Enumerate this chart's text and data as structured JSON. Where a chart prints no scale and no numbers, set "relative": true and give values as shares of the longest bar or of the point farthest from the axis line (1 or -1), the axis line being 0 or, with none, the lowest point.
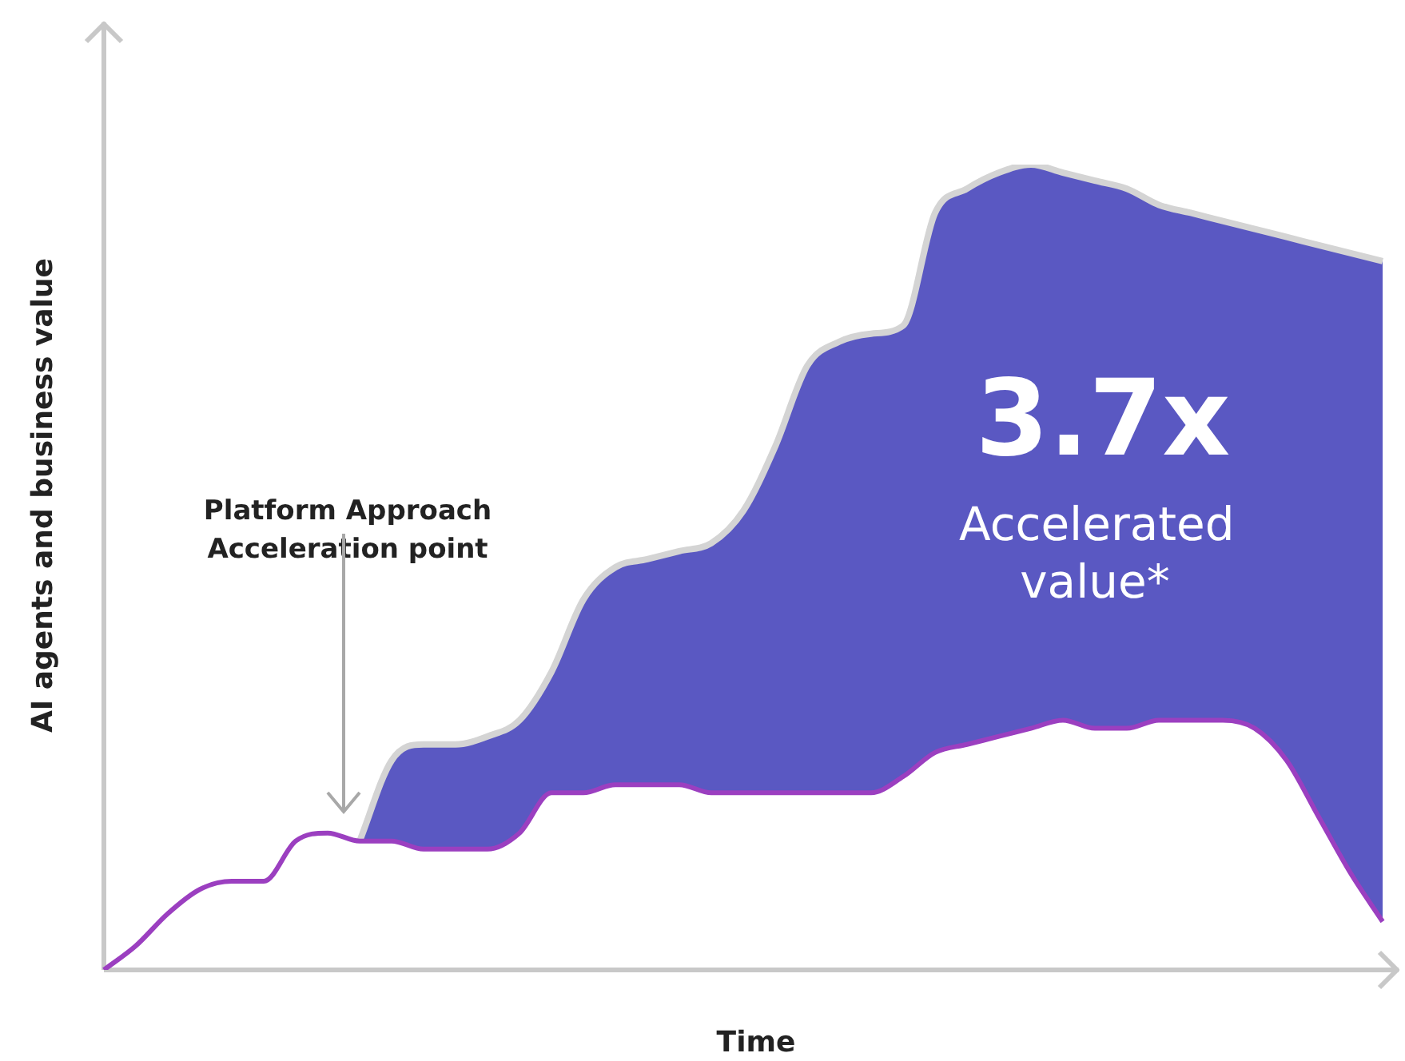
{
  "chart_data": {
    "type": "line",
    "relative": true,
    "xlabel": "Time",
    "ylabel": "AI agents and business value",
    "categories": [
      null,
      null,
      null,
      null,
      null,
      null,
      null,
      null,
      null,
      null,
      null,
      null,
      null,
      null,
      null,
      null,
      null,
      null,
      null,
      null,
      null,
      null,
      null,
      null,
      null,
      null,
      null,
      null,
      null,
      null,
      null,
      null,
      null,
      null,
      null,
      null,
      null,
      null,
      null,
      null,
      null
    ],
    "series": [
      {
        "color": "#9b3fc0",
        "values": [
          0,
          0.03,
          0.07,
          0.1,
          0.11,
          0.11,
          0.16,
          0.17,
          0.16,
          0.16,
          0.15,
          0.15,
          0.15,
          0.17,
          0.22,
          0.22,
          0.23,
          0.23,
          0.23,
          0.22,
          0.22,
          0.22,
          0.22,
          0.22,
          0.22,
          0.24,
          0.27,
          0.28,
          0.29,
          0.3,
          0.31,
          0.3,
          0.3,
          0.31,
          0.31,
          0.31,
          0.3,
          0.26,
          0.19,
          0.12,
          0.06
        ]
      },
      {
        "type": "area",
        "color": "#5a58c2",
        "values": [
          null,
          null,
          null,
          null,
          null,
          null,
          null,
          null,
          0.16,
          0.26,
          0.28,
          0.28,
          0.29,
          0.31,
          0.37,
          0.46,
          0.5,
          0.51,
          0.52,
          0.53,
          0.57,
          0.65,
          0.75,
          0.78,
          0.79,
          0.8,
          0.94,
          0.97,
          0.99,
          1,
          0.99,
          0.98,
          0.97,
          0.95,
          0.94,
          0.93,
          0.92,
          0.91,
          0.9,
          0.89,
          0.88
        ]
      }
    ],
    "annotations": [
      "Platform Approach Acceleration point",
      "3.7x",
      "Accelerated value*"
    ],
    "legend": false
  }
}
